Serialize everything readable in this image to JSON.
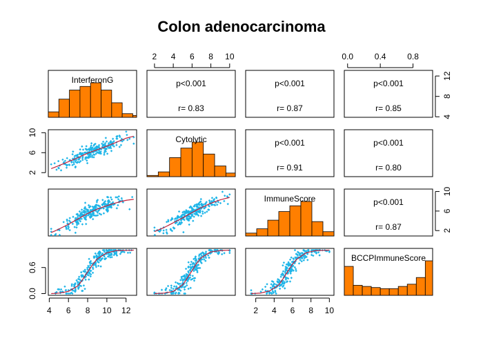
{
  "chart_data": {
    "type": "scatter",
    "title": "Colon adenocarcinoma",
    "variables": [
      "InterferonG",
      "Cytolytic",
      "ImmuneScore",
      "BCCPImmuneScore"
    ],
    "axis_ticks": {
      "InterferonG": [
        "4",
        "6",
        "8",
        "10",
        "12"
      ],
      "Cytolytic": [
        "2",
        "6",
        "10"
      ],
      "Cytolytic_top": [
        "2",
        "4",
        "6",
        "8",
        "10"
      ],
      "ImmuneScore": [
        "2",
        "6",
        "10"
      ],
      "ImmuneScore_bottom": [
        "2",
        "4",
        "6",
        "8",
        "10"
      ],
      "BCCPImmuneScore": [
        "0.0",
        "0.6"
      ],
      "BCCPImmuneScore_top": [
        "0.0",
        "0.4",
        "0.8"
      ],
      "InterferonG_right": [
        "4",
        "8",
        "12"
      ]
    },
    "ranges": {
      "InterferonG": [
        3.9,
        13.1
      ],
      "Cytolytic": [
        1.2,
        10.6
      ],
      "ImmuneScore": [
        0.9,
        10.5
      ],
      "BCCPImmuneScore": [
        -0.04,
        1.04
      ]
    },
    "histograms": {
      "InterferonG": {
        "bins": [
          3.9,
          5.0,
          6.1,
          7.2,
          8.3,
          9.4,
          10.5,
          11.6,
          12.7,
          13.1
        ],
        "counts": [
          3,
          10,
          15,
          17,
          19,
          15,
          8,
          2,
          1
        ]
      },
      "Cytolytic": {
        "bins": [
          1.2,
          2.4,
          3.6,
          4.8,
          6.0,
          7.2,
          8.4,
          9.6,
          10.6
        ],
        "counts": [
          1,
          4,
          16,
          24,
          29,
          19,
          9,
          3
        ]
      },
      "ImmuneScore": {
        "bins": [
          0.9,
          2.1,
          3.3,
          4.5,
          5.7,
          6.9,
          8.1,
          9.3,
          10.5
        ],
        "counts": [
          2,
          5,
          11,
          17,
          21,
          24,
          10,
          3
        ]
      },
      "BCCPImmuneScore": {
        "bins": [
          -0.04,
          0.07,
          0.18,
          0.29,
          0.4,
          0.51,
          0.62,
          0.73,
          0.84,
          0.95,
          1.04
        ],
        "counts": [
          26,
          9,
          8,
          7,
          6,
          6,
          8,
          10,
          16,
          31
        ]
      }
    },
    "correlations": [
      {
        "pair": [
          "InterferonG",
          "Cytolytic"
        ],
        "p": "p<0.001",
        "r": "r= 0.83"
      },
      {
        "pair": [
          "InterferonG",
          "ImmuneScore"
        ],
        "p": "p<0.001",
        "r": "r= 0.87"
      },
      {
        "pair": [
          "InterferonG",
          "BCCPImmuneScore"
        ],
        "p": "p<0.001",
        "r": "r= 0.85"
      },
      {
        "pair": [
          "Cytolytic",
          "ImmuneScore"
        ],
        "p": "p<0.001",
        "r": "r= 0.91"
      },
      {
        "pair": [
          "Cytolytic",
          "BCCPImmuneScore"
        ],
        "p": "p<0.001",
        "r": "r= 0.80"
      },
      {
        "pair": [
          "ImmuneScore",
          "BCCPImmuneScore"
        ],
        "p": "p<0.001",
        "r": "r= 0.87"
      }
    ],
    "scatter_trends": [
      {
        "x": "InterferonG",
        "y": "Cytolytic",
        "x_points": [
          4.2,
          5,
          6,
          7,
          8,
          9,
          10,
          11,
          12,
          12.8
        ],
        "y_points": [
          2.8,
          3.4,
          4.2,
          5.0,
          5.9,
          6.6,
          7.3,
          8.1,
          8.9,
          9.3
        ]
      },
      {
        "x": "InterferonG",
        "y": "ImmuneScore",
        "x_points": [
          4.2,
          5,
          6,
          7,
          8,
          9,
          10,
          11,
          12,
          12.8
        ],
        "y_points": [
          1.6,
          2.3,
          3.3,
          4.4,
          5.5,
          6.4,
          7.1,
          7.7,
          8.2,
          8.4
        ]
      },
      {
        "x": "Cytolytic",
        "y": "ImmuneScore",
        "x_points": [
          2,
          3,
          4,
          5,
          6,
          7,
          8,
          9,
          10
        ],
        "y_points": [
          1.8,
          2.6,
          3.6,
          4.6,
          5.7,
          6.7,
          7.6,
          8.3,
          8.8
        ]
      },
      {
        "x": "InterferonG",
        "y": "BCCPImmuneScore",
        "x_points": [
          4.2,
          5,
          6,
          7,
          7.5,
          8,
          8.5,
          9,
          10,
          11,
          12.8
        ],
        "y_points": [
          0.0,
          0.01,
          0.05,
          0.18,
          0.33,
          0.5,
          0.66,
          0.8,
          0.94,
          0.99,
          1.0
        ]
      },
      {
        "x": "Cytolytic",
        "y": "BCCPImmuneScore",
        "x_points": [
          2,
          3,
          4,
          5,
          5.5,
          6,
          6.5,
          7,
          8,
          9,
          10
        ],
        "y_points": [
          0.0,
          0.01,
          0.05,
          0.2,
          0.36,
          0.53,
          0.7,
          0.83,
          0.96,
          0.99,
          1.0
        ]
      },
      {
        "x": "ImmuneScore",
        "y": "BCCPImmuneScore",
        "x_points": [
          1.5,
          2.5,
          3.5,
          4.5,
          5,
          5.5,
          6,
          6.5,
          7.5,
          8.5,
          10
        ],
        "y_points": [
          0.0,
          0.01,
          0.06,
          0.2,
          0.35,
          0.52,
          0.68,
          0.8,
          0.94,
          0.99,
          1.0
        ]
      }
    ],
    "colors": {
      "histogram_fill": "#ff7f00",
      "points": "#1eb5e8",
      "trend_line": "#c0203a",
      "frame": "#000000"
    },
    "n_points_per_panel": 240
  }
}
